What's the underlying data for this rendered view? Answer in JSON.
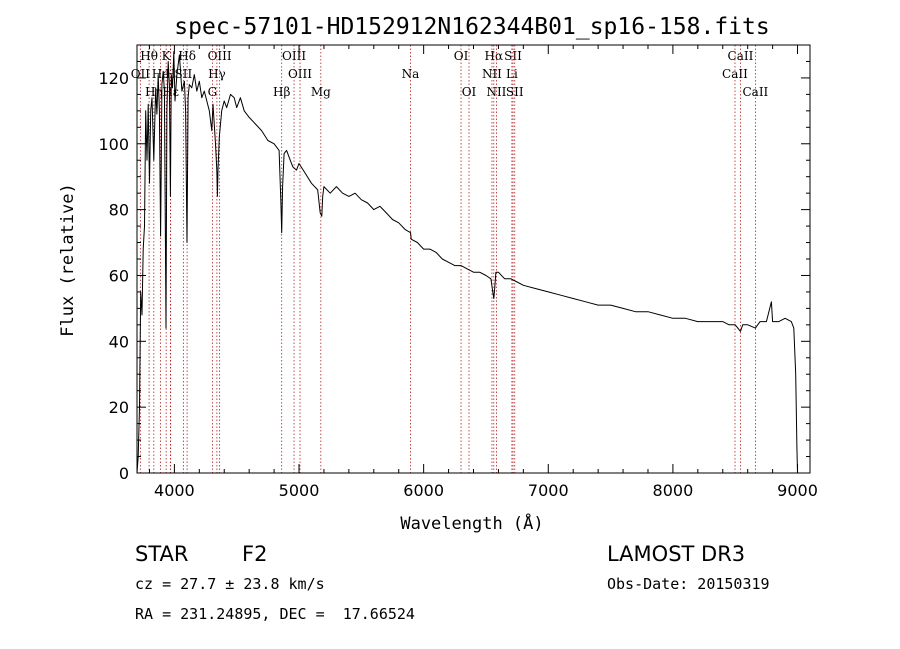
{
  "colors": {
    "spectrum": "#000000",
    "line_markers": "#b22222",
    "axes": "#000000",
    "background": "#ffffff"
  },
  "info": {
    "object_class": "STAR",
    "subclass": "F2",
    "survey": "LAMOST DR3",
    "redshift": "cz = 27.7 ± 23.8 km/s",
    "obs_date": "Obs-Date: 20150319",
    "coords": "RA = 231.24895, DEC =  17.66524"
  },
  "chart_data": {
    "type": "line",
    "title": "spec-57101-HD152912N162344B01_sp16-158.fits",
    "xlabel": "Wavelength (Å)",
    "ylabel": "Flux (relative)",
    "xlim": [
      3700,
      9100
    ],
    "ylim": [
      0,
      130
    ],
    "xticks": [
      4000,
      5000,
      6000,
      7000,
      8000,
      9000
    ],
    "yticks": [
      0,
      20,
      40,
      60,
      80,
      100,
      120
    ],
    "grid": false,
    "series": [
      {
        "name": "flux",
        "x": [
          3700,
          3710,
          3720,
          3730,
          3740,
          3750,
          3760,
          3770,
          3780,
          3790,
          3800,
          3810,
          3820,
          3835,
          3850,
          3860,
          3870,
          3880,
          3889,
          3895,
          3900,
          3910,
          3920,
          3933,
          3940,
          3950,
          3960,
          3968,
          3975,
          3985,
          3995,
          4005,
          4020,
          4040,
          4060,
          4080,
          4090,
          4101,
          4110,
          4120,
          4140,
          4160,
          4180,
          4200,
          4220,
          4240,
          4260,
          4280,
          4300,
          4310,
          4330,
          4340,
          4345,
          4350,
          4360,
          4380,
          4400,
          4420,
          4450,
          4480,
          4500,
          4530,
          4560,
          4600,
          4650,
          4700,
          4750,
          4800,
          4840,
          4855,
          4861,
          4868,
          4880,
          4900,
          4920,
          4950,
          4980,
          5000,
          5050,
          5100,
          5150,
          5170,
          5183,
          5190,
          5200,
          5250,
          5300,
          5350,
          5400,
          5450,
          5500,
          5550,
          5600,
          5650,
          5700,
          5750,
          5800,
          5850,
          5895,
          5900,
          5950,
          6000,
          6050,
          6100,
          6150,
          6200,
          6250,
          6300,
          6350,
          6400,
          6450,
          6500,
          6540,
          6555,
          6563,
          6570,
          6580,
          6600,
          6650,
          6700,
          6750,
          6800,
          6900,
          7000,
          7100,
          7200,
          7300,
          7400,
          7500,
          7600,
          7700,
          7800,
          7900,
          8000,
          8100,
          8200,
          8300,
          8400,
          8450,
          8500,
          8542,
          8560,
          8600,
          8662,
          8680,
          8700,
          8750,
          8790,
          8800,
          8850,
          8900,
          8950,
          8970,
          8985,
          8995,
          9000
        ],
        "y": [
          0,
          5,
          20,
          55,
          48,
          68,
          75,
          110,
          95,
          112,
          88,
          110,
          114,
          95,
          117,
          109,
          121,
          110,
          72,
          95,
          118,
          122,
          116,
          44,
          110,
          125,
          118,
          84,
          121,
          117,
          128,
          113,
          121,
          127,
          116,
          119,
          110,
          70,
          114,
          118,
          117,
          121,
          116,
          119,
          114,
          116,
          113,
          110,
          104,
          112,
          100,
          92,
          84,
          92,
          102,
          110,
          113,
          111,
          115,
          114,
          111,
          114,
          110,
          108,
          106,
          104,
          101,
          100,
          98,
          82,
          73,
          87,
          97,
          98,
          96,
          93,
          92,
          94,
          91,
          88,
          86,
          79,
          78,
          84,
          87,
          85,
          87,
          85,
          84,
          85,
          83,
          82,
          80,
          81,
          79,
          77,
          76,
          74,
          73,
          71,
          70,
          68,
          68,
          67,
          65,
          64,
          63,
          63,
          62,
          61,
          61,
          60,
          59,
          55,
          53,
          56,
          61,
          61,
          59,
          59,
          58,
          57,
          56,
          55,
          54,
          53,
          52,
          51,
          51,
          50,
          49,
          49,
          48,
          47,
          47,
          46,
          46,
          46,
          45,
          45,
          43,
          45,
          45,
          44,
          45,
          46,
          46,
          52,
          46,
          46,
          47,
          46,
          44,
          30,
          8,
          0
        ]
      }
    ],
    "line_markers": [
      {
        "label": "Hθ",
        "wavelength": 3797,
        "row": 0
      },
      {
        "label": "OII",
        "wavelength": 3727,
        "row": 1
      },
      {
        "label": "Hη",
        "wavelength": 3835,
        "row": 2
      },
      {
        "label": "K",
        "wavelength": 3934,
        "row": 0
      },
      {
        "label": "He",
        "wavelength": 3889,
        "row": 1
      },
      {
        "label": "Hε",
        "wavelength": 3970,
        "row": 2
      },
      {
        "label": "H",
        "wavelength": 3968,
        "row": 1
      },
      {
        "label": "Hδ",
        "wavelength": 4102,
        "row": 0
      },
      {
        "label": "SII",
        "wavelength": 4072,
        "row": 1
      },
      {
        "label": "OIII",
        "wavelength": 4363,
        "row": 0
      },
      {
        "label": "Hγ",
        "wavelength": 4341,
        "row": 1
      },
      {
        "label": "G",
        "wavelength": 4305,
        "row": 2
      },
      {
        "label": "OIII",
        "wavelength": 4960,
        "row": 0
      },
      {
        "label": "OIII",
        "wavelength": 5008,
        "row": 1
      },
      {
        "label": "Hβ",
        "wavelength": 4861,
        "row": 2
      },
      {
        "label": "Mg",
        "wavelength": 5175,
        "row": 2
      },
      {
        "label": "Na",
        "wavelength": 5894,
        "row": 1
      },
      {
        "label": "OI",
        "wavelength": 6300,
        "row": 0
      },
      {
        "label": "OI",
        "wavelength": 6364,
        "row": 2
      },
      {
        "label": "Hα",
        "wavelength": 6563,
        "row": 0
      },
      {
        "label": "NII",
        "wavelength": 6548,
        "row": 1
      },
      {
        "label": "NII",
        "wavelength": 6584,
        "row": 2
      },
      {
        "label": "SII",
        "wavelength": 6717,
        "row": 0
      },
      {
        "label": "Li",
        "wavelength": 6708,
        "row": 1
      },
      {
        "label": "SII",
        "wavelength": 6731,
        "row": 2
      },
      {
        "label": "CaII",
        "wavelength": 8542,
        "row": 0
      },
      {
        "label": "CaII",
        "wavelength": 8498,
        "row": 1
      },
      {
        "label": "CaII",
        "wavelength": 8662,
        "row": 2
      }
    ]
  }
}
